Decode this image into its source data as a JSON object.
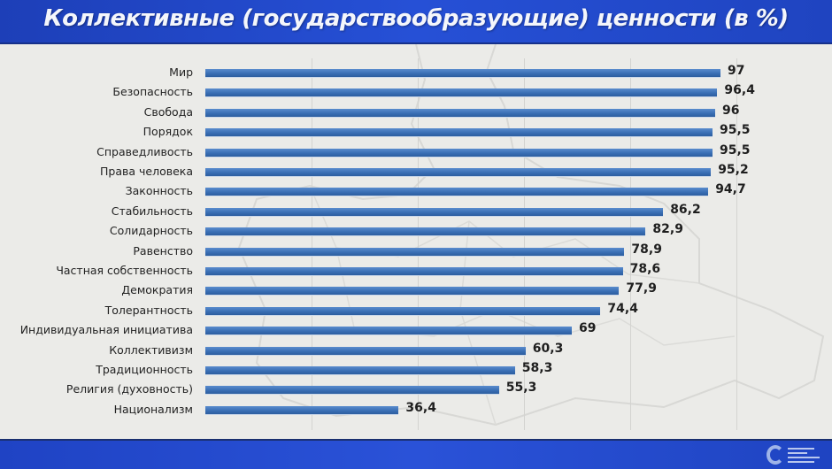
{
  "header": {
    "title": "Коллективные (государствообразующие) ценности (в %)"
  },
  "colors": {
    "header_bg": "#2650d6",
    "bar": "#3a6fb5",
    "background": "#ebebe8",
    "footer_bg": "#2a52d8"
  },
  "footer": {
    "logo": "institute-logo"
  },
  "chart_data": {
    "type": "bar",
    "orientation": "horizontal",
    "title": "Коллективные (государствообразующие) ценности (в %)",
    "xlabel": "",
    "ylabel": "",
    "xlim": [
      0,
      100
    ],
    "grid": true,
    "legend": null,
    "categories": [
      "Мир",
      "Безопасность",
      "Свобода",
      "Порядок",
      "Справедливость",
      "Права человека",
      "Законность",
      "Стабильность",
      "Солидарность",
      "Равенство",
      "Частная собственность",
      "Демократия",
      "Толерантность",
      "Индивидуальная инициатива",
      "Коллективизм",
      "Традиционность",
      "Религия (духовность)",
      "Национализм"
    ],
    "values": [
      97,
      96.4,
      96,
      95.5,
      95.5,
      95.2,
      94.7,
      86.2,
      82.9,
      78.9,
      78.6,
      77.9,
      74.4,
      69,
      60.3,
      58.3,
      55.3,
      36.4
    ],
    "value_labels": [
      "97",
      "96,4",
      "96",
      "95,5",
      "95,5",
      "95,2",
      "94,7",
      "86,2",
      "82,9",
      "78,9",
      "78,6",
      "77,9",
      "74,4",
      "69",
      "60,3",
      "58,3",
      "55,3",
      "36,4"
    ]
  }
}
